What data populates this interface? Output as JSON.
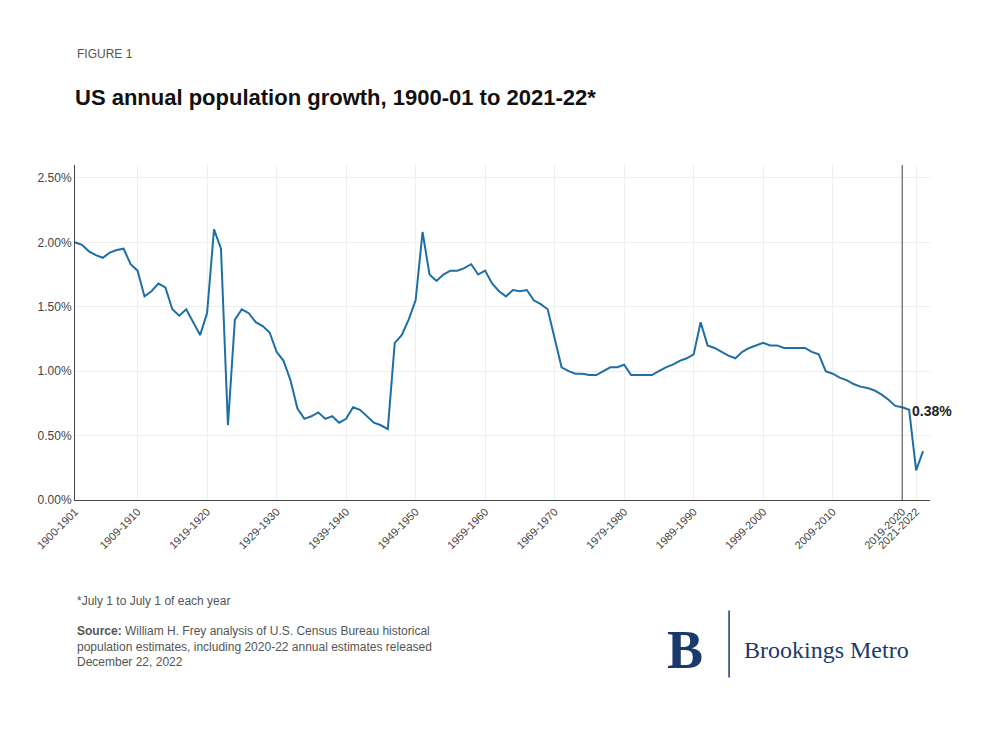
{
  "chart_data": {
    "type": "line",
    "figure_label": "FIGURE 1",
    "title": "US annual population growth, 1900-01 to 2021-22*",
    "footnote": "*July 1 to July 1 of each year",
    "source_label": "Source:",
    "source_text": "William H. Frey analysis of U.S. Census Bureau historical\npopulation estimates, including 2020-22 annual estimates released\nDecember 22, 2022",
    "branding": [
      "B",
      "Brookings Metro"
    ],
    "annotations": [
      {
        "text": "0.38%",
        "x": 2021,
        "y": 0.0038
      }
    ],
    "vline": 2019,
    "color": "#1d6fa5",
    "grid": true,
    "xlim": [
      1900,
      2023
    ],
    "xticks": [
      {
        "value": 1900,
        "label": "1900-1901"
      },
      {
        "value": 1909,
        "label": "1909-1910"
      },
      {
        "value": 1919,
        "label": "1919-1920"
      },
      {
        "value": 1929,
        "label": "1929-1930"
      },
      {
        "value": 1939,
        "label": "1939-1940"
      },
      {
        "value": 1949,
        "label": "1949-1950"
      },
      {
        "value": 1959,
        "label": "1959-1960"
      },
      {
        "value": 1969,
        "label": "1969-1970"
      },
      {
        "value": 1979,
        "label": "1979-1980"
      },
      {
        "value": 1989,
        "label": "1989-1990"
      },
      {
        "value": 1999,
        "label": "1999-2000"
      },
      {
        "value": 2009,
        "label": "2009-2010"
      },
      {
        "value": 2019,
        "label": "2019-2020"
      },
      {
        "value": 2021,
        "label": "2021-2022"
      }
    ],
    "ylim": [
      0.0,
      0.026
    ],
    "yticks": [
      {
        "value": 0.0,
        "label": "0.00%"
      },
      {
        "value": 0.005,
        "label": "0.50%"
      },
      {
        "value": 0.01,
        "label": "1.00%"
      },
      {
        "value": 0.015,
        "label": "1.50%"
      },
      {
        "value": 0.02,
        "label": "2.00%"
      },
      {
        "value": 0.025,
        "label": "2.50%"
      }
    ],
    "x": [
      1900,
      1901,
      1902,
      1903,
      1904,
      1905,
      1906,
      1907,
      1908,
      1909,
      1910,
      1911,
      1912,
      1913,
      1914,
      1915,
      1916,
      1917,
      1918,
      1919,
      1920,
      1921,
      1922,
      1923,
      1924,
      1925,
      1926,
      1927,
      1928,
      1929,
      1930,
      1931,
      1932,
      1933,
      1934,
      1935,
      1936,
      1937,
      1938,
      1939,
      1940,
      1941,
      1942,
      1943,
      1944,
      1945,
      1946,
      1947,
      1948,
      1949,
      1950,
      1951,
      1952,
      1953,
      1954,
      1955,
      1956,
      1957,
      1958,
      1959,
      1960,
      1961,
      1962,
      1963,
      1964,
      1965,
      1966,
      1967,
      1968,
      1969,
      1970,
      1971,
      1972,
      1973,
      1974,
      1975,
      1976,
      1977,
      1978,
      1979,
      1980,
      1981,
      1982,
      1983,
      1984,
      1985,
      1986,
      1987,
      1988,
      1989,
      1990,
      1991,
      1992,
      1993,
      1994,
      1995,
      1996,
      1997,
      1998,
      1999,
      2000,
      2001,
      2002,
      2003,
      2004,
      2005,
      2006,
      2007,
      2008,
      2009,
      2010,
      2011,
      2012,
      2013,
      2014,
      2015,
      2016,
      2017,
      2018,
      2019,
      2020,
      2021,
      2022
    ],
    "values": [
      0.02,
      0.0198,
      0.0193,
      0.019,
      0.0188,
      0.0192,
      0.0194,
      0.0195,
      0.0183,
      0.0178,
      0.0158,
      0.0162,
      0.0168,
      0.0165,
      0.0148,
      0.0143,
      0.0148,
      0.0138,
      0.0128,
      0.0145,
      0.021,
      0.0195,
      0.0058,
      0.014,
      0.0148,
      0.0145,
      0.0138,
      0.0135,
      0.013,
      0.0115,
      0.0108,
      0.0093,
      0.0071,
      0.0063,
      0.0065,
      0.0068,
      0.0063,
      0.0065,
      0.006,
      0.0063,
      0.0072,
      0.007,
      0.0065,
      0.006,
      0.0058,
      0.0055,
      0.0122,
      0.0128,
      0.014,
      0.0155,
      0.0208,
      0.0175,
      0.017,
      0.0175,
      0.0178,
      0.0178,
      0.018,
      0.0183,
      0.0175,
      0.0178,
      0.0168,
      0.0162,
      0.0158,
      0.0163,
      0.0162,
      0.0163,
      0.0155,
      0.0152,
      0.0148,
      0.0125,
      0.0103,
      0.01,
      0.0098,
      0.0098,
      0.0097,
      0.0097,
      0.01,
      0.0103,
      0.0103,
      0.0105,
      0.0097,
      0.0097,
      0.0097,
      0.0097,
      0.01,
      0.0103,
      0.0105,
      0.0108,
      0.011,
      0.0113,
      0.0138,
      0.012,
      0.0118,
      0.0115,
      0.0112,
      0.011,
      0.0115,
      0.0118,
      0.012,
      0.0122,
      0.012,
      0.012,
      0.0118,
      0.0118,
      0.0118,
      0.0118,
      0.0115,
      0.0113,
      0.01,
      0.0098,
      0.0095,
      0.0093,
      0.009,
      0.0088,
      0.0087,
      0.0085,
      0.0082,
      0.0078,
      0.0073,
      0.0072,
      0.007,
      0.0023,
      0.0038
    ]
  }
}
